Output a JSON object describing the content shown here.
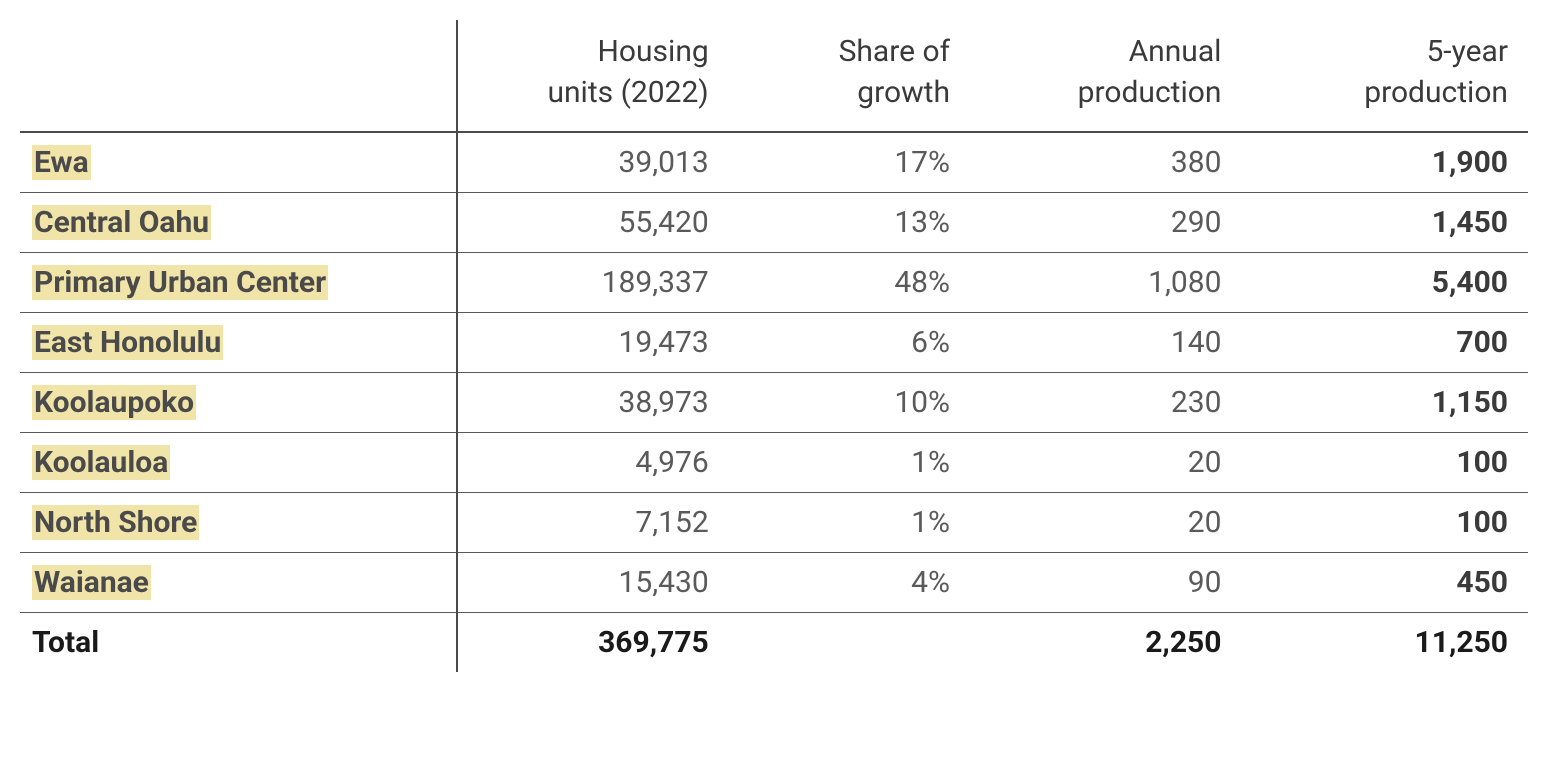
{
  "table": {
    "type": "table",
    "background_color": "#ffffff",
    "text_color": "#3a3a3a",
    "data_text_color": "#5a5a5a",
    "border_color": "#4a4a4a",
    "highlight_color": "#f0e4a8",
    "font_size": 30,
    "header_font_weight": 400,
    "label_font_weight": 700,
    "bold_font_weight": 700,
    "columns": [
      {
        "label": "",
        "align": "left",
        "width_pct": 29
      },
      {
        "label_line1": "Housing",
        "label_line2": "units (2022)",
        "align": "right",
        "width_pct": 18
      },
      {
        "label_line1": "Share of",
        "label_line2": "growth",
        "align": "right",
        "width_pct": 16
      },
      {
        "label_line1": "Annual",
        "label_line2": "production",
        "align": "right",
        "width_pct": 18
      },
      {
        "label_line1": "5-year",
        "label_line2": "production",
        "align": "right",
        "width_pct": 19
      }
    ],
    "rows": [
      {
        "name": "Ewa",
        "units": "39,013",
        "share": "17%",
        "annual": "380",
        "five_year": "1,900"
      },
      {
        "name": "Central Oahu",
        "units": "55,420",
        "share": "13%",
        "annual": "290",
        "five_year": "1,450"
      },
      {
        "name": "Primary Urban Center",
        "units": "189,337",
        "share": "48%",
        "annual": "1,080",
        "five_year": "5,400"
      },
      {
        "name": "East Honolulu",
        "units": "19,473",
        "share": "6%",
        "annual": "140",
        "five_year": "700"
      },
      {
        "name": "Koolaupoko",
        "units": "38,973",
        "share": "10%",
        "annual": "230",
        "five_year": "1,150"
      },
      {
        "name": "Koolauloa",
        "units": "4,976",
        "share": "1%",
        "annual": "20",
        "five_year": "100"
      },
      {
        "name": "North Shore",
        "units": "7,152",
        "share": "1%",
        "annual": "20",
        "five_year": "100"
      },
      {
        "name": "Waianae",
        "units": "15,430",
        "share": "4%",
        "annual": "90",
        "five_year": "450"
      }
    ],
    "total": {
      "name": "Total",
      "units": "369,775",
      "share": "",
      "annual": "2,250",
      "five_year": "11,250"
    }
  }
}
